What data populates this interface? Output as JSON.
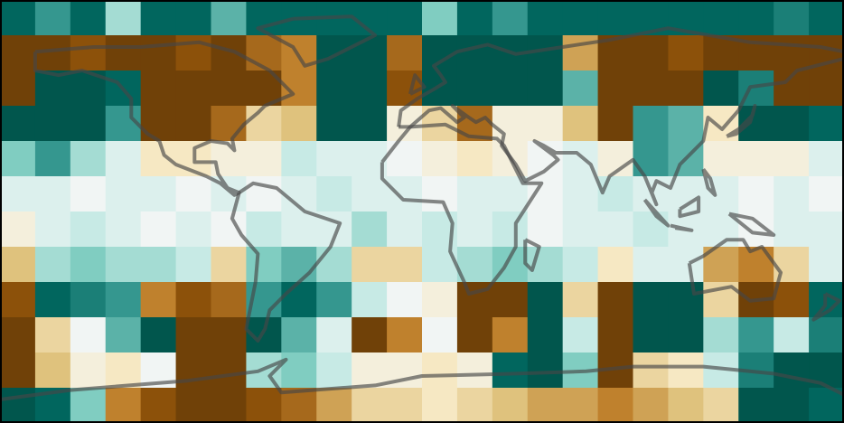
{
  "grid": {
    "colormap": [
      "#543005",
      "#8c510a",
      "#bf812d",
      "#dfc27d",
      "#f6e8c3",
      "#f1f5f4",
      "#c7eae5",
      "#80cdc1",
      "#35978f",
      "#01665e",
      "#00463c"
    ],
    "values": [
      [
        0.8,
        0.6,
        0.8,
        0.3,
        0.8,
        0.8,
        0.5,
        0.8,
        0.8,
        0.8,
        0.8,
        0.8,
        0.4,
        0.8,
        0.6,
        0.8,
        0.8,
        0.8,
        0.8,
        0.8,
        0.8,
        0.8,
        0.7,
        0.8
      ],
      [
        -0.9,
        -0.9,
        -0.8,
        -0.9,
        -0.9,
        -0.8,
        -0.9,
        -0.7,
        -0.6,
        0.9,
        0.9,
        -0.7,
        0.9,
        0.9,
        0.9,
        0.9,
        -0.5,
        -0.9,
        -0.9,
        -0.8,
        -0.9,
        -0.9,
        -0.9,
        -0.9
      ],
      [
        -0.9,
        0.9,
        0.9,
        0.8,
        -0.9,
        -0.9,
        -0.9,
        -0.9,
        -0.6,
        0.9,
        0.9,
        -0.8,
        0.9,
        0.9,
        0.9,
        0.9,
        0.5,
        -0.9,
        -0.9,
        -0.9,
        0.9,
        0.7,
        -0.9,
        -0.9
      ],
      [
        0.9,
        0.9,
        0.9,
        0.6,
        -0.9,
        -0.9,
        -0.7,
        -0.3,
        -0.4,
        0.9,
        0.9,
        -0.1,
        -0.3,
        -0.7,
        -0.1,
        -0.1,
        -0.4,
        -0.9,
        0.6,
        0.5,
        -0.2,
        0.9,
        0.9,
        0.8
      ],
      [
        0.4,
        0.6,
        0.3,
        0.1,
        -0.2,
        -0.2,
        -0.1,
        -0.1,
        0.2,
        0.1,
        0.1,
        0,
        -0.1,
        -0.2,
        -0.1,
        0,
        0.1,
        -0.1,
        0.6,
        0.5,
        -0.1,
        -0.1,
        -0.1,
        0.1
      ],
      [
        0.1,
        0.1,
        0,
        0.1,
        0.1,
        0,
        0.1,
        0,
        0.1,
        0.2,
        0.1,
        0.1,
        0,
        0.1,
        0.1,
        0,
        0.1,
        0.2,
        0.1,
        0.1,
        0.1,
        0,
        0.1,
        0
      ],
      [
        -0.1,
        0.1,
        0.2,
        0.1,
        0,
        0.1,
        0,
        0.2,
        0.1,
        0.1,
        0.3,
        0.1,
        0.2,
        0.1,
        0.2,
        0,
        0.1,
        0.1,
        0.2,
        0.1,
        0.1,
        0,
        0.1,
        0.1
      ],
      [
        -0.4,
        0.3,
        0.4,
        0.3,
        0.3,
        0.2,
        -0.3,
        0.4,
        0.5,
        0.3,
        -0.3,
        -0.3,
        0.2,
        0.3,
        0.4,
        0.3,
        0.2,
        -0.2,
        0.1,
        0.1,
        -0.5,
        -0.6,
        -0.3,
        0.1
      ],
      [
        -0.8,
        0.8,
        0.7,
        0.6,
        -0.6,
        -0.8,
        -0.7,
        0.6,
        0.8,
        0.6,
        0.2,
        0,
        -0.1,
        -0.9,
        -0.9,
        0.9,
        -0.3,
        -0.9,
        0.9,
        0.9,
        -0.3,
        -0.9,
        -0.8,
        0.8
      ],
      [
        -0.9,
        -0.3,
        0,
        0.5,
        0.9,
        -0.9,
        -0.9,
        0.9,
        0.5,
        0.1,
        -0.9,
        -0.6,
        0,
        -0.9,
        -0.6,
        0.9,
        0.2,
        -0.9,
        0.9,
        0.9,
        0.3,
        0.6,
        0.2,
        0.7
      ],
      [
        -0.9,
        -0.4,
        -0.1,
        -0.2,
        0,
        -0.9,
        -0.9,
        0.3,
        0.4,
        0.2,
        -0.1,
        -0.1,
        -0.2,
        -0.1,
        0.8,
        0.9,
        0.4,
        -0.9,
        -0.3,
        -0.2,
        0.2,
        0.7,
        0.9,
        0.9
      ],
      [
        0.9,
        0.8,
        0.4,
        -0.6,
        -0.8,
        -0.9,
        -0.9,
        -0.8,
        -0.7,
        -0.5,
        -0.3,
        -0.3,
        -0.2,
        -0.3,
        -0.4,
        -0.5,
        -0.5,
        -0.6,
        -0.5,
        -0.4,
        -0.3,
        0.9,
        0.9,
        0.8
      ]
    ]
  }
}
